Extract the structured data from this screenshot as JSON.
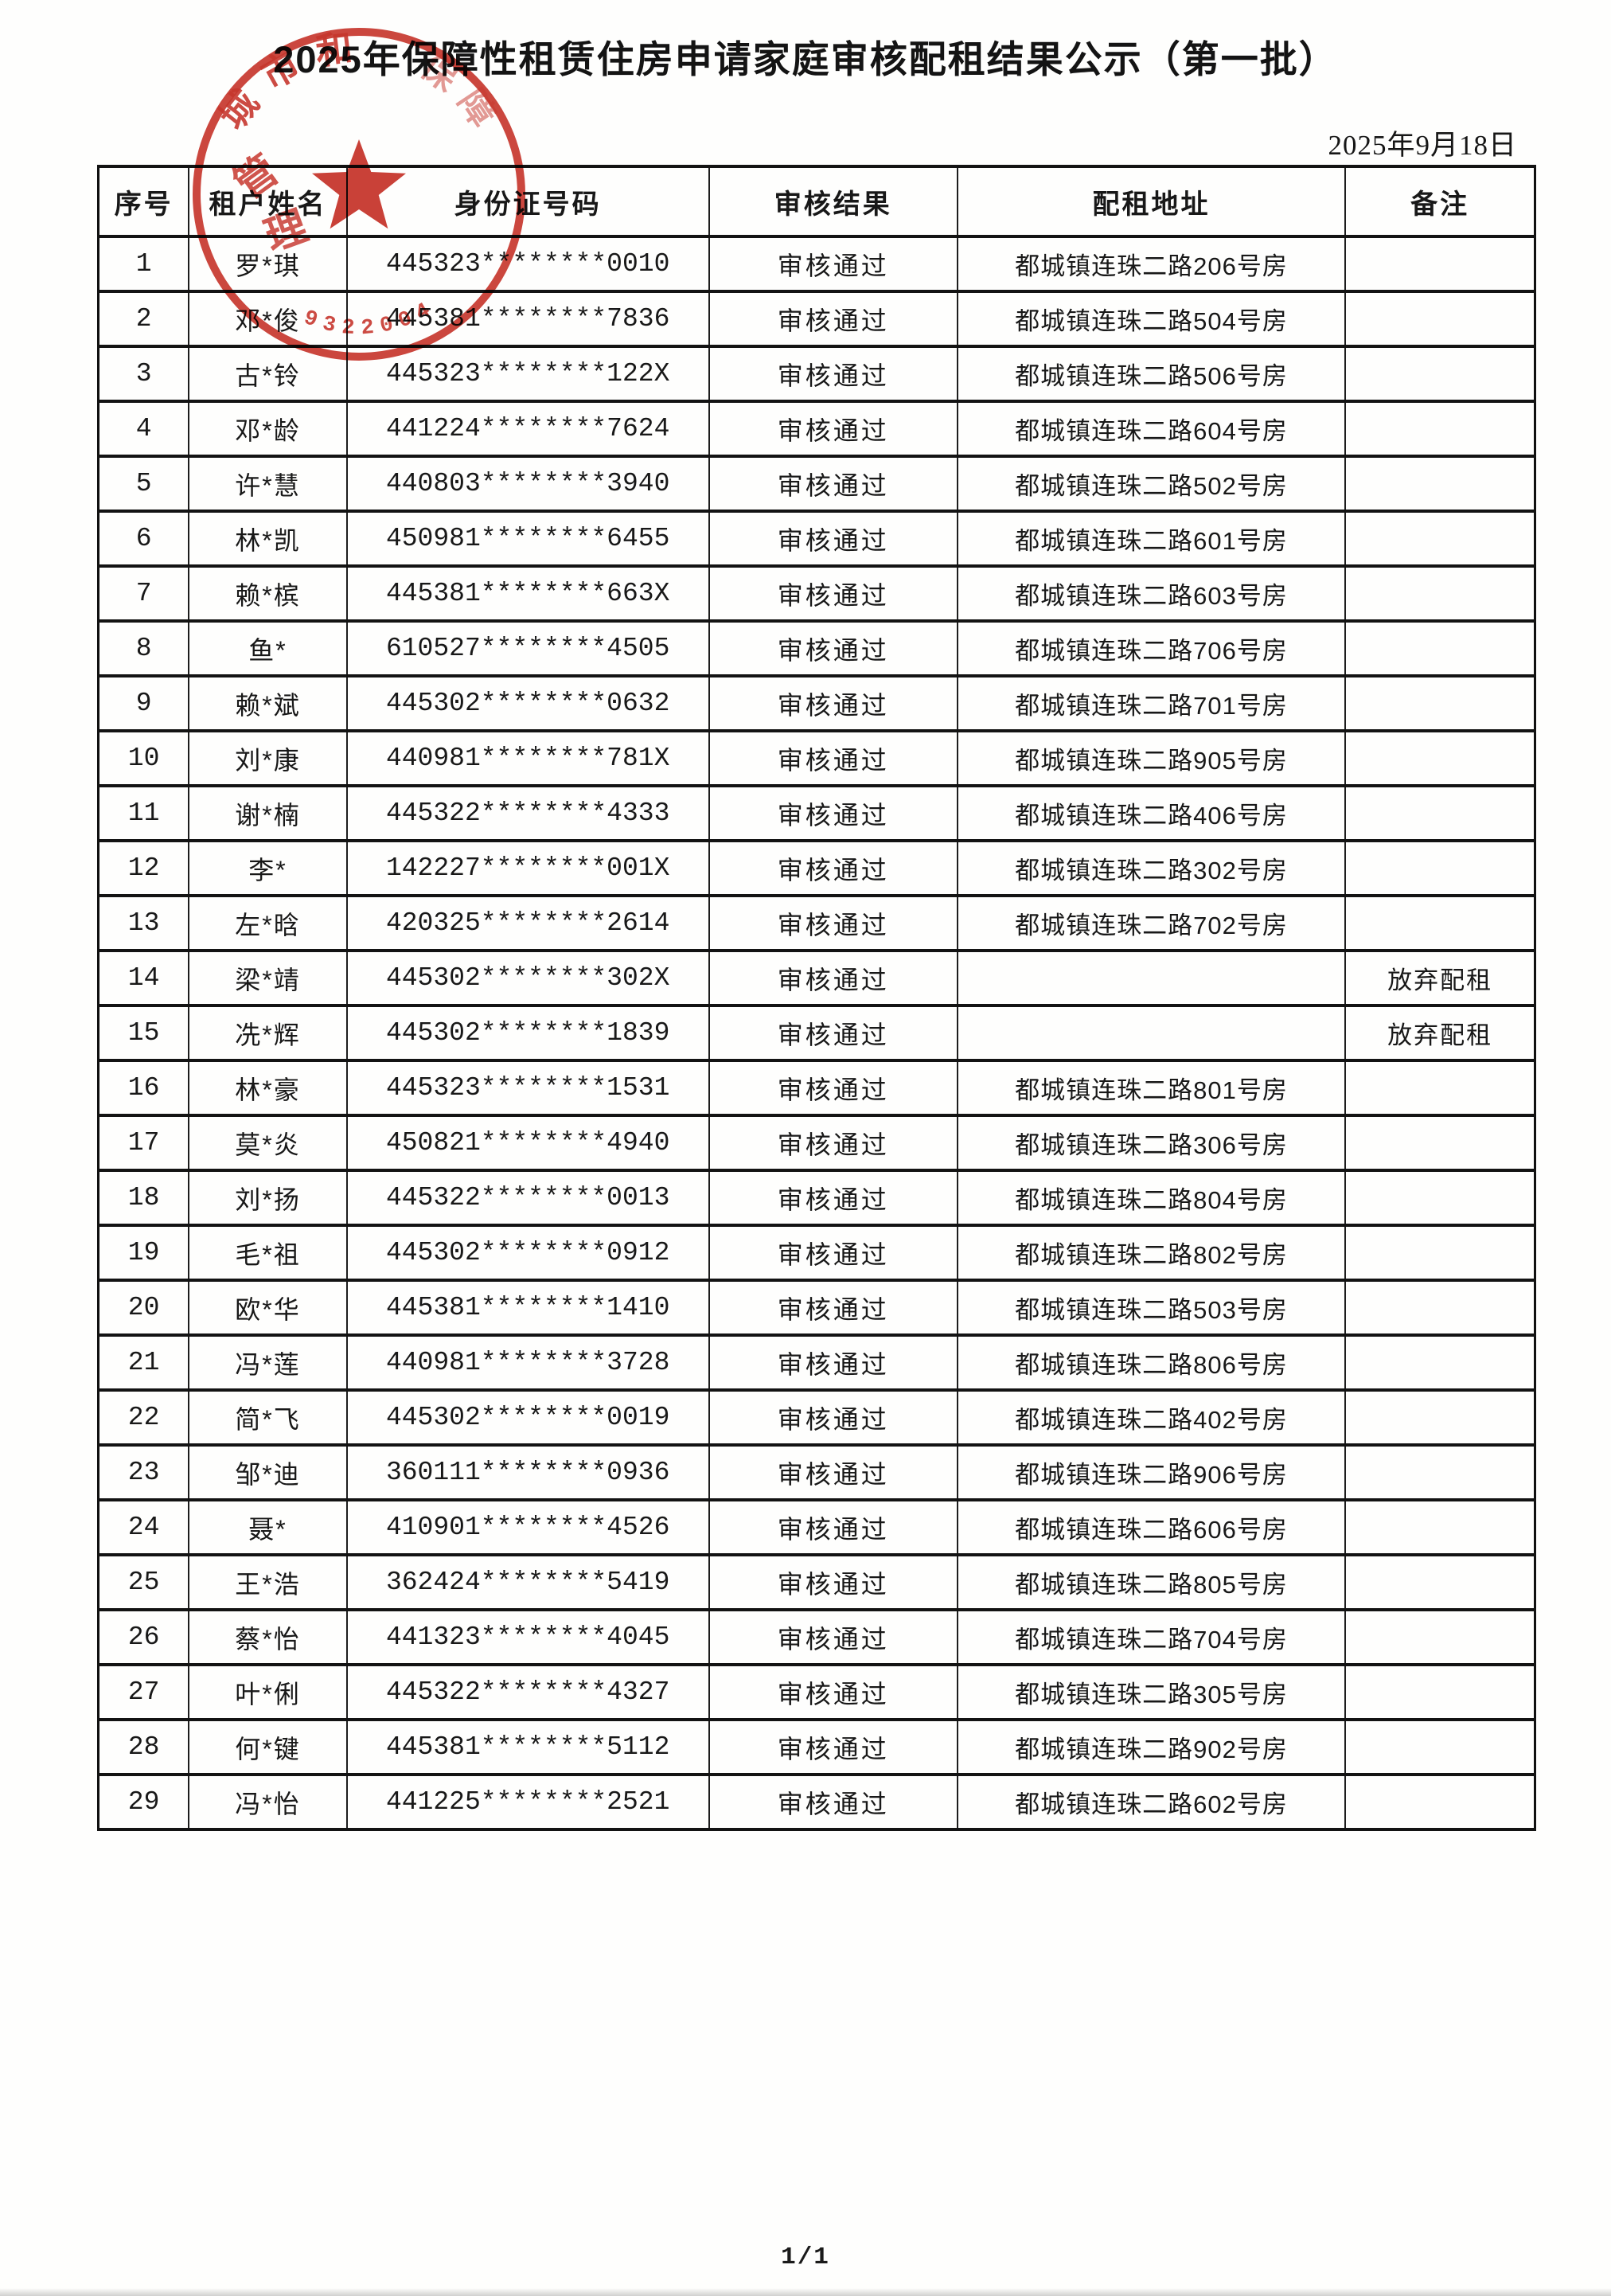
{
  "page": {
    "title": "2025年保障性租赁住房申请家庭审核配租结果公示（第一批）",
    "date": "2025年9月18日",
    "page_number": "1/1"
  },
  "stamp": {
    "color": "#c3271d",
    "arc_text": "城市和",
    "arc_text_faint": "保障",
    "inner_char_1": "管",
    "inner_char_2": "理",
    "serial_digits": "9322004"
  },
  "table": {
    "headers": [
      "序号",
      "租户姓名",
      "身份证号码",
      "审核结果",
      "配租地址",
      "备注"
    ],
    "rows": [
      [
        "1",
        "罗*琪",
        "445323********0010",
        "审核通过",
        "都城镇连珠二路206号房",
        ""
      ],
      [
        "2",
        "邓*俊",
        "445381********7836",
        "审核通过",
        "都城镇连珠二路504号房",
        ""
      ],
      [
        "3",
        "古*铃",
        "445323********122X",
        "审核通过",
        "都城镇连珠二路506号房",
        ""
      ],
      [
        "4",
        "邓*龄",
        "441224********7624",
        "审核通过",
        "都城镇连珠二路604号房",
        ""
      ],
      [
        "5",
        "许*慧",
        "440803********3940",
        "审核通过",
        "都城镇连珠二路502号房",
        ""
      ],
      [
        "6",
        "林*凯",
        "450981********6455",
        "审核通过",
        "都城镇连珠二路601号房",
        ""
      ],
      [
        "7",
        "赖*槟",
        "445381********663X",
        "审核通过",
        "都城镇连珠二路603号房",
        ""
      ],
      [
        "8",
        "鱼*",
        "610527********4505",
        "审核通过",
        "都城镇连珠二路706号房",
        ""
      ],
      [
        "9",
        "赖*斌",
        "445302********0632",
        "审核通过",
        "都城镇连珠二路701号房",
        ""
      ],
      [
        "10",
        "刘*康",
        "440981********781X",
        "审核通过",
        "都城镇连珠二路905号房",
        ""
      ],
      [
        "11",
        "谢*楠",
        "445322********4333",
        "审核通过",
        "都城镇连珠二路406号房",
        ""
      ],
      [
        "12",
        "李*",
        "142227********001X",
        "审核通过",
        "都城镇连珠二路302号房",
        ""
      ],
      [
        "13",
        "左*晗",
        "420325********2614",
        "审核通过",
        "都城镇连珠二路702号房",
        ""
      ],
      [
        "14",
        "梁*靖",
        "445302********302X",
        "审核通过",
        "",
        "放弃配租"
      ],
      [
        "15",
        "冼*辉",
        "445302********1839",
        "审核通过",
        "",
        "放弃配租"
      ],
      [
        "16",
        "林*豪",
        "445323********1531",
        "审核通过",
        "都城镇连珠二路801号房",
        ""
      ],
      [
        "17",
        "莫*炎",
        "450821********4940",
        "审核通过",
        "都城镇连珠二路306号房",
        ""
      ],
      [
        "18",
        "刘*扬",
        "445322********0013",
        "审核通过",
        "都城镇连珠二路804号房",
        ""
      ],
      [
        "19",
        "毛*祖",
        "445302********0912",
        "审核通过",
        "都城镇连珠二路802号房",
        ""
      ],
      [
        "20",
        "欧*华",
        "445381********1410",
        "审核通过",
        "都城镇连珠二路503号房",
        ""
      ],
      [
        "21",
        "冯*莲",
        "440981********3728",
        "审核通过",
        "都城镇连珠二路806号房",
        ""
      ],
      [
        "22",
        "简*飞",
        "445302********0019",
        "审核通过",
        "都城镇连珠二路402号房",
        ""
      ],
      [
        "23",
        "邹*迪",
        "360111********0936",
        "审核通过",
        "都城镇连珠二路906号房",
        ""
      ],
      [
        "24",
        "聂*",
        "410901********4526",
        "审核通过",
        "都城镇连珠二路606号房",
        ""
      ],
      [
        "25",
        "王*浩",
        "362424********5419",
        "审核通过",
        "都城镇连珠二路805号房",
        ""
      ],
      [
        "26",
        "蔡*怡",
        "441323********4045",
        "审核通过",
        "都城镇连珠二路704号房",
        ""
      ],
      [
        "27",
        "叶*俐",
        "445322********4327",
        "审核通过",
        "都城镇连珠二路305号房",
        ""
      ],
      [
        "28",
        "何*键",
        "445381********5112",
        "审核通过",
        "都城镇连珠二路902号房",
        ""
      ],
      [
        "29",
        "冯*怡",
        "441225********2521",
        "审核通过",
        "都城镇连珠二路602号房",
        ""
      ]
    ]
  }
}
